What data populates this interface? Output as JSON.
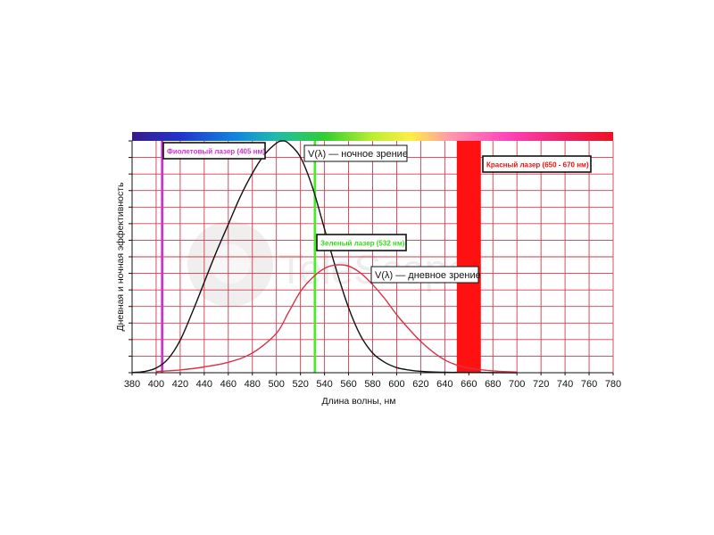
{
  "chart_data": {
    "type": "line",
    "title": "",
    "xlabel": "Длина волны, нм",
    "ylabel": "Дневная и ночная эффективность",
    "xlim": [
      380,
      780
    ],
    "ylim": [
      0,
      1
    ],
    "x_ticks": [
      "380",
      "400",
      "420",
      "440",
      "460",
      "480",
      "500",
      "520",
      "540",
      "560",
      "580",
      "600",
      "620",
      "640",
      "660",
      "680",
      "700",
      "720",
      "740",
      "760",
      "780"
    ],
    "grid": true,
    "grid_color": "#d63a4e",
    "series": [
      {
        "name": "V(λ) — ночное зрение",
        "color": "#111111",
        "points": [
          [
            380,
            0.001
          ],
          [
            390,
            0.005
          ],
          [
            400,
            0.02
          ],
          [
            410,
            0.06
          ],
          [
            420,
            0.14
          ],
          [
            430,
            0.26
          ],
          [
            440,
            0.39
          ],
          [
            450,
            0.52
          ],
          [
            460,
            0.64
          ],
          [
            470,
            0.76
          ],
          [
            480,
            0.86
          ],
          [
            490,
            0.94
          ],
          [
            500,
            0.99
          ],
          [
            505,
            1.0
          ],
          [
            510,
            0.99
          ],
          [
            520,
            0.93
          ],
          [
            530,
            0.8
          ],
          [
            540,
            0.62
          ],
          [
            550,
            0.44
          ],
          [
            560,
            0.28
          ],
          [
            570,
            0.16
          ],
          [
            580,
            0.085
          ],
          [
            590,
            0.045
          ],
          [
            600,
            0.022
          ],
          [
            610,
            0.012
          ],
          [
            620,
            0.006
          ],
          [
            640,
            0.002
          ],
          [
            660,
            0.001
          ],
          [
            700,
            0.0
          ]
        ]
      },
      {
        "name": "V(λ) — дневное зрение",
        "color": "#d6334a",
        "points": [
          [
            400,
            0.005
          ],
          [
            420,
            0.012
          ],
          [
            440,
            0.025
          ],
          [
            460,
            0.045
          ],
          [
            480,
            0.085
          ],
          [
            500,
            0.17
          ],
          [
            510,
            0.26
          ],
          [
            520,
            0.35
          ],
          [
            530,
            0.41
          ],
          [
            540,
            0.45
          ],
          [
            550,
            0.465
          ],
          [
            560,
            0.46
          ],
          [
            570,
            0.43
          ],
          [
            580,
            0.38
          ],
          [
            590,
            0.32
          ],
          [
            600,
            0.25
          ],
          [
            610,
            0.19
          ],
          [
            620,
            0.135
          ],
          [
            630,
            0.09
          ],
          [
            640,
            0.055
          ],
          [
            650,
            0.033
          ],
          [
            660,
            0.02
          ],
          [
            680,
            0.008
          ],
          [
            700,
            0.003
          ]
        ]
      }
    ],
    "markers": [
      {
        "label": "Фиолетовый лазер (405 нм)",
        "from": 404,
        "to": 406,
        "color": "#cc33cc",
        "text_color": "#cc33cc"
      },
      {
        "label": "Зеленый лазер (532 нм)",
        "from": 531,
        "to": 533,
        "color": "#44ee22",
        "text_color": "#33dd11"
      },
      {
        "label": "Красный лазер (650 - 670 нм)",
        "from": 650,
        "to": 670,
        "color": "#ff1111",
        "text_color": "#ee1111"
      }
    ],
    "spectrum_bar": true
  },
  "watermark": {
    "text": "TeleScope"
  }
}
